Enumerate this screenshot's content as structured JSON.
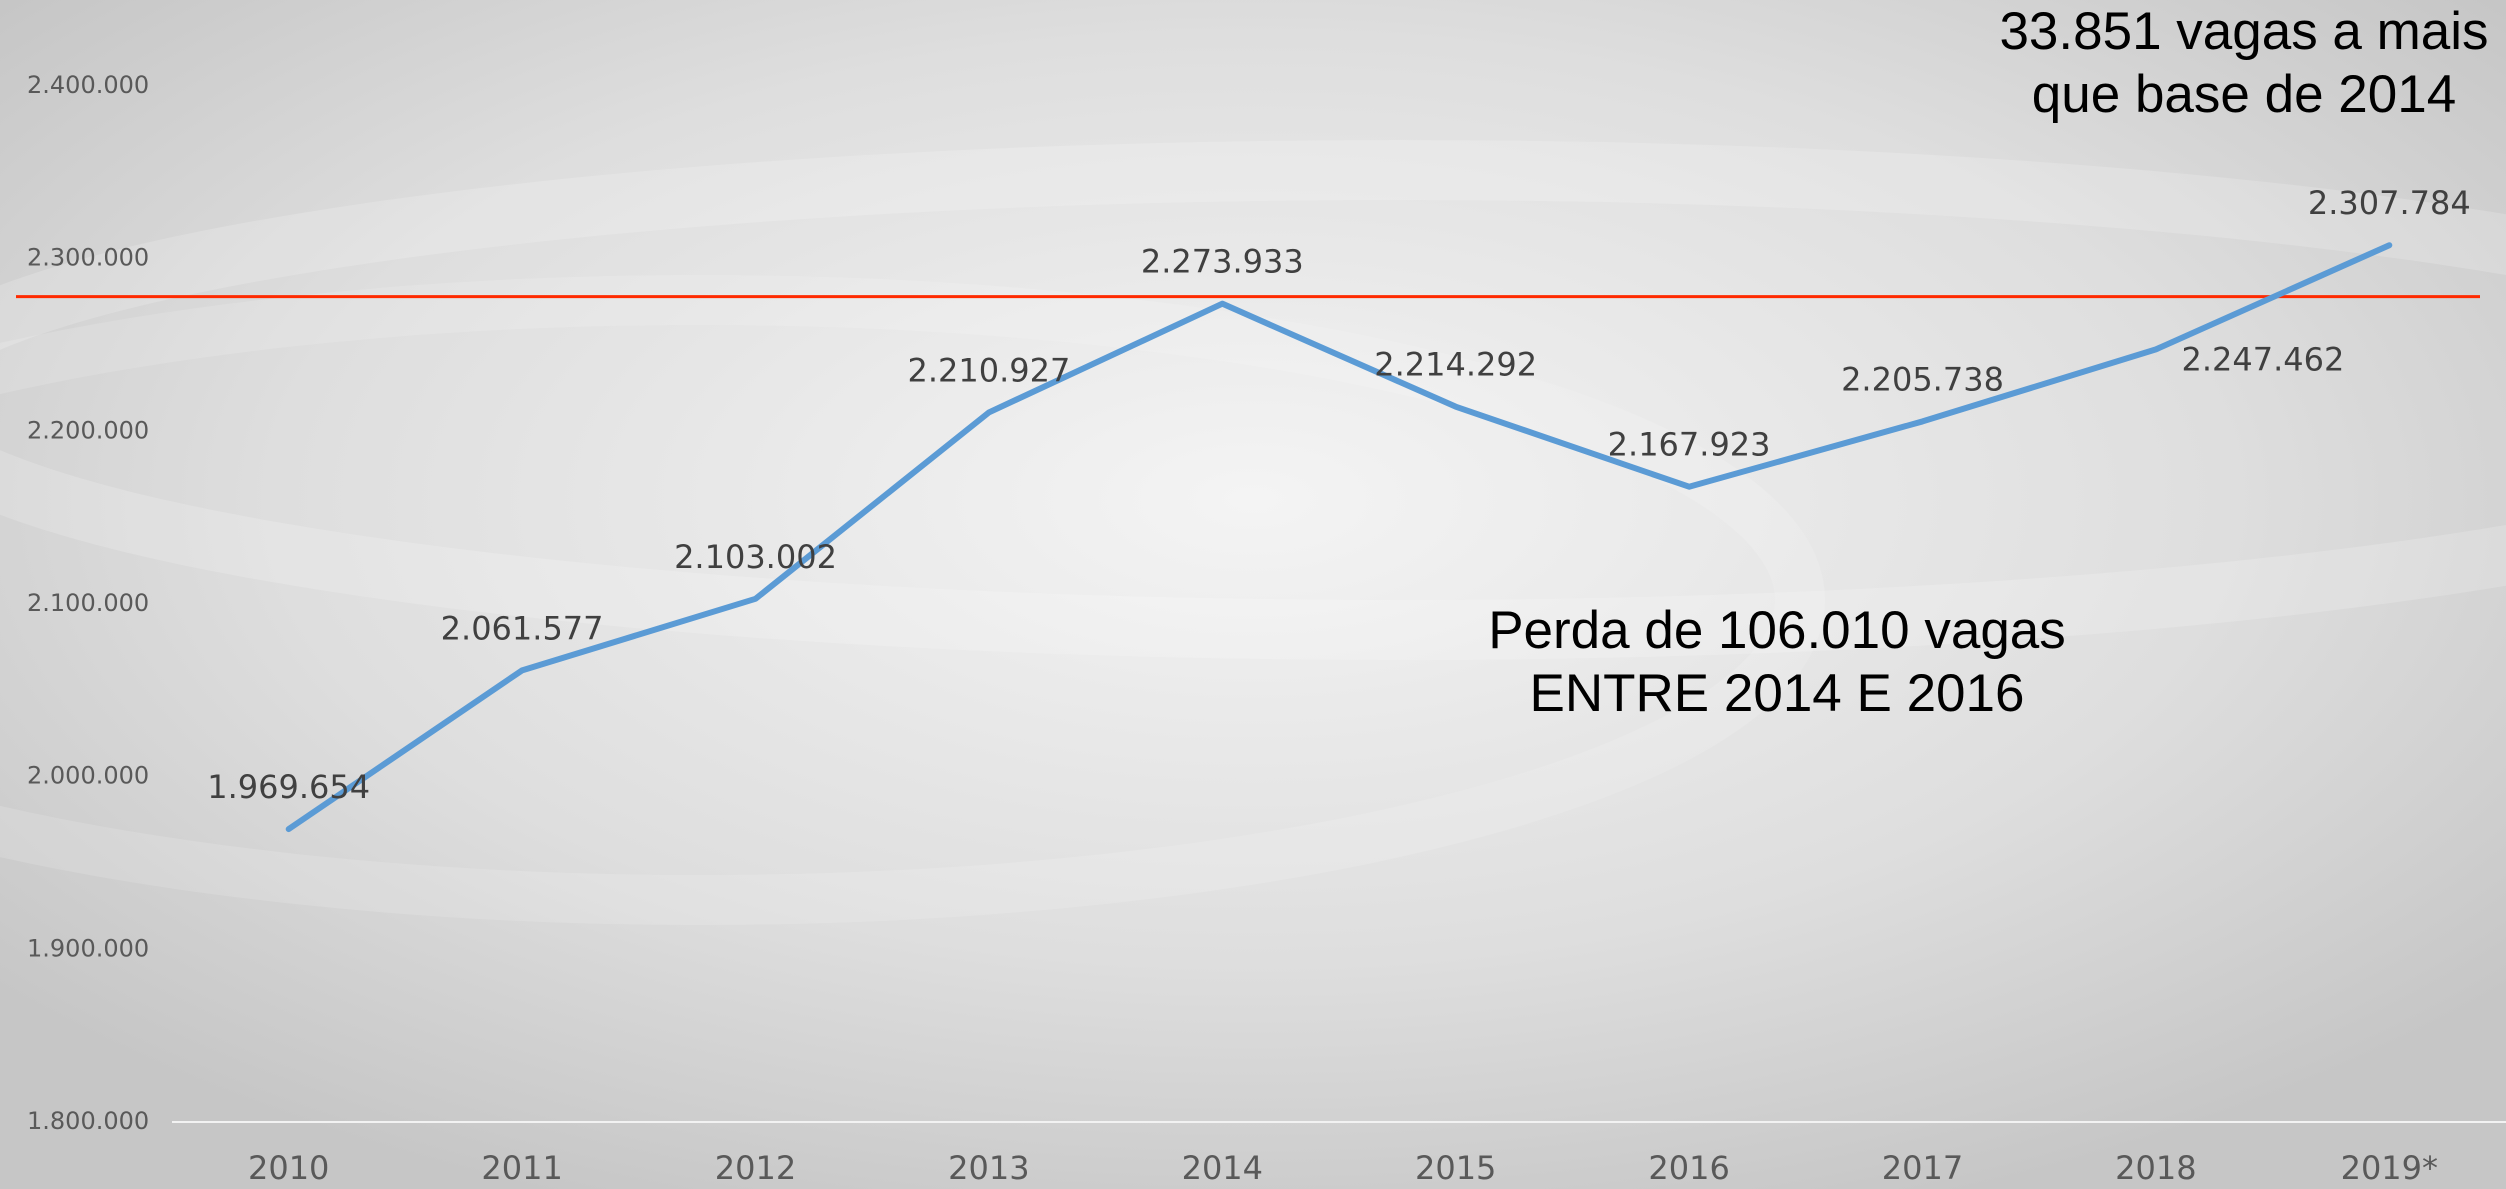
{
  "chart_data": {
    "type": "line",
    "categories": [
      "2010",
      "2011",
      "2012",
      "2013",
      "2014",
      "2015",
      "2016",
      "2017",
      "2018",
      "2019*"
    ],
    "series": [
      {
        "color": "#5b9bd5",
        "values": [
          1969654,
          2061577,
          2103002,
          2210927,
          2273933,
          2214292,
          2167923,
          2205738,
          2247462,
          2307784
        ],
        "value_labels": [
          "1.969.654",
          "2.061.577",
          "2.103.002",
          "2.210.927",
          "2.273.933",
          "2.214.292",
          "2.167.923",
          "2.205.738",
          "2.247.462",
          "2.307.784"
        ]
      }
    ],
    "ylim": [
      1800000,
      2400000
    ],
    "yticks": [
      {
        "value": 1800000,
        "label": "1.800.000"
      },
      {
        "value": 1900000,
        "label": "1.900.000"
      },
      {
        "value": 2000000,
        "label": "2.000.000"
      },
      {
        "value": 2100000,
        "label": "2.100.000"
      },
      {
        "value": 2200000,
        "label": "2.200.000"
      },
      {
        "value": 2300000,
        "label": "2.300.000"
      },
      {
        "value": 2400000,
        "label": "2.400.000"
      }
    ],
    "grid": false,
    "reference_line": {
      "value": 2278000,
      "color": "#ff2a00"
    },
    "annotations": [
      {
        "lines": [
          "33.851 vagas a mais",
          "que base de 2014"
        ]
      },
      {
        "lines": [
          "Perda de 106.010 vagas",
          "ENTRE 2014 E 2016"
        ]
      }
    ]
  }
}
